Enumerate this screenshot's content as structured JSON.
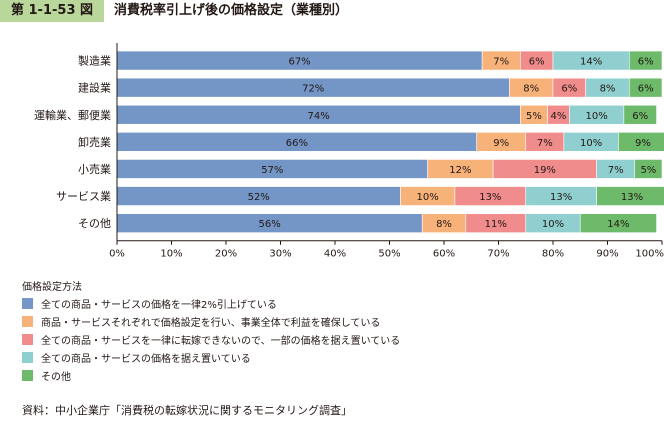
{
  "header": {
    "figure_number": "第 1-1-53 図",
    "title": "消費税率引上げ後の価格設定（業種別）"
  },
  "chart_data": {
    "type": "bar",
    "orientation": "horizontal",
    "stacked": true,
    "categories": [
      "製造業",
      "建設業",
      "運輸業、郵便業",
      "卸売業",
      "小売業",
      "サービス業",
      "その他"
    ],
    "series": [
      {
        "name": "全ての商品・サービスの価格を一律2%引上げている",
        "color": "#7396c6",
        "values": [
          67,
          72,
          74,
          66,
          57,
          52,
          56
        ]
      },
      {
        "name": "商品・サービスそれぞれで価格設定を行い、事業全体で利益を確保している",
        "color": "#f7b27a",
        "values": [
          7,
          8,
          5,
          9,
          12,
          10,
          8
        ]
      },
      {
        "name": "全ての商品・サービスを一律に転嫁できないので、一部の価格を据え置いている",
        "color": "#f08c8c",
        "values": [
          6,
          6,
          4,
          7,
          19,
          13,
          11
        ]
      },
      {
        "name": "全ての商品・サービスの価格を据え置いている",
        "color": "#8fcfcf",
        "values": [
          14,
          8,
          10,
          10,
          7,
          13,
          10
        ]
      },
      {
        "name": "その他",
        "color": "#6cba6a",
        "values": [
          6,
          6,
          6,
          9,
          5,
          13,
          14
        ]
      }
    ],
    "xlim": [
      0,
      100
    ],
    "x_ticks": [
      "0%",
      "10%",
      "20%",
      "30%",
      "40%",
      "50%",
      "60%",
      "70%",
      "80%",
      "90%",
      "100%"
    ],
    "legend_title": "価格設定方法",
    "legend_position": "bottom-left",
    "grid": false
  },
  "source": "資料：中小企業庁「消費税の転嫁状況に関するモニタリング調査」"
}
